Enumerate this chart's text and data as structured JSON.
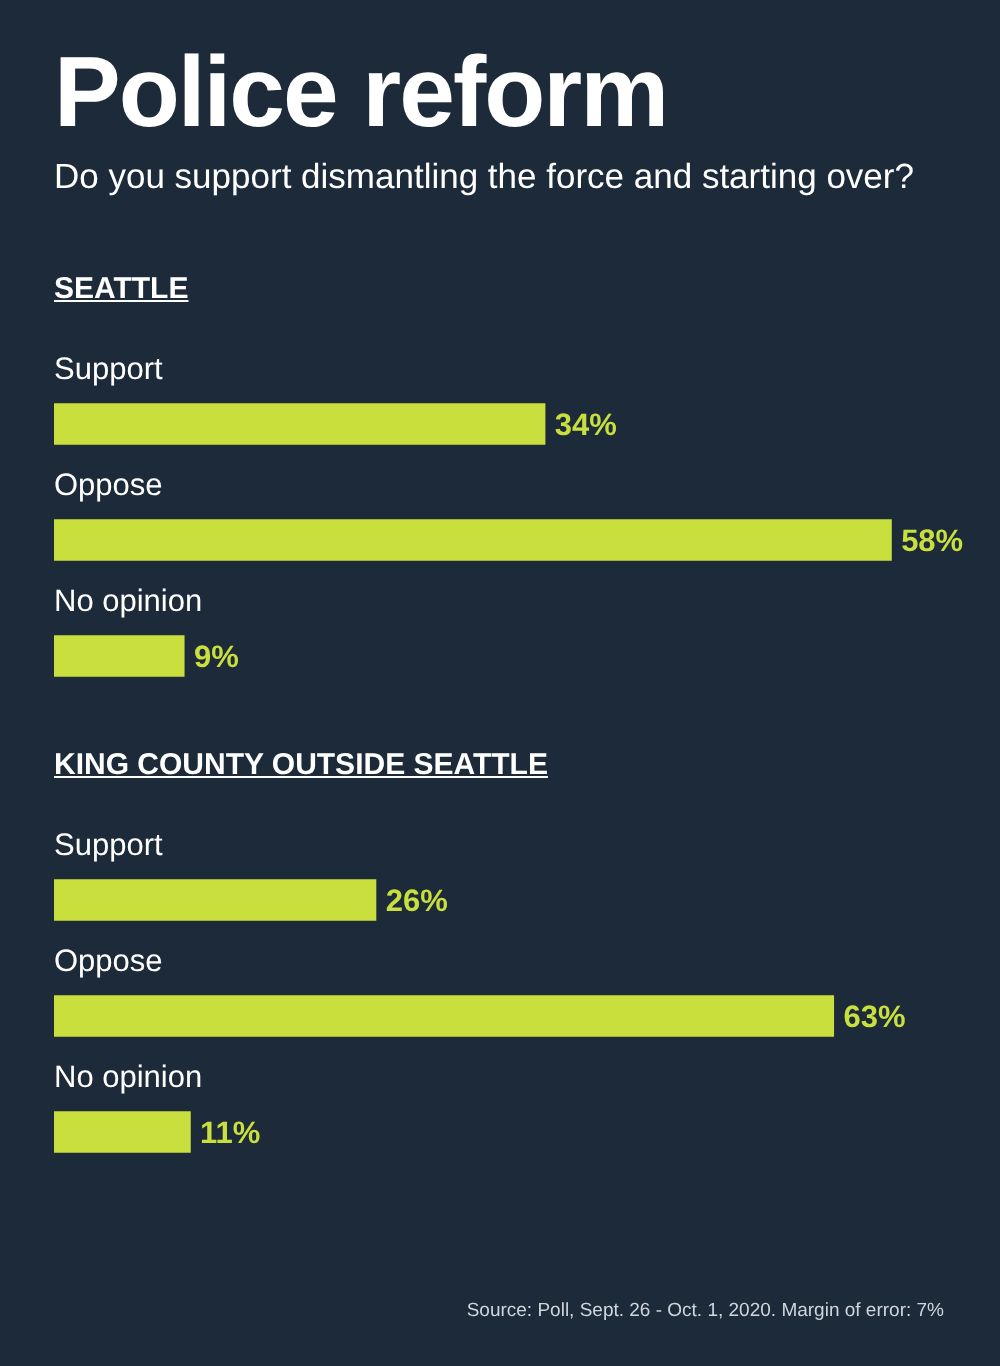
{
  "chart_data": [
    {
      "type": "other",
      "title": "Police reform",
      "subtitle": "Do you support dismantling the force and starting over?"
    },
    {
      "type": "bar",
      "orientation": "horizontal",
      "title": "SEATTLE",
      "categories": [
        "Support",
        "Oppose",
        "No opinion"
      ],
      "values": [
        34,
        58,
        9
      ],
      "value_labels": [
        "34%",
        "58%",
        "9%"
      ],
      "color": "#c9df3d",
      "tick_labels": false
    },
    {
      "type": "bar",
      "orientation": "horizontal",
      "title": "KING COUNTY OUTSIDE SEATTLE",
      "categories": [
        "Support",
        "Oppose",
        "No opinion"
      ],
      "values": [
        26,
        63,
        11
      ],
      "value_labels": [
        "26%",
        "63%",
        "11%"
      ],
      "color": "#c9df3d",
      "tick_labels": false,
      "annotations": [
        "Source: Poll, Sept. 26 - Oct. 1, 2020. Margin of error: 7%"
      ]
    }
  ]
}
